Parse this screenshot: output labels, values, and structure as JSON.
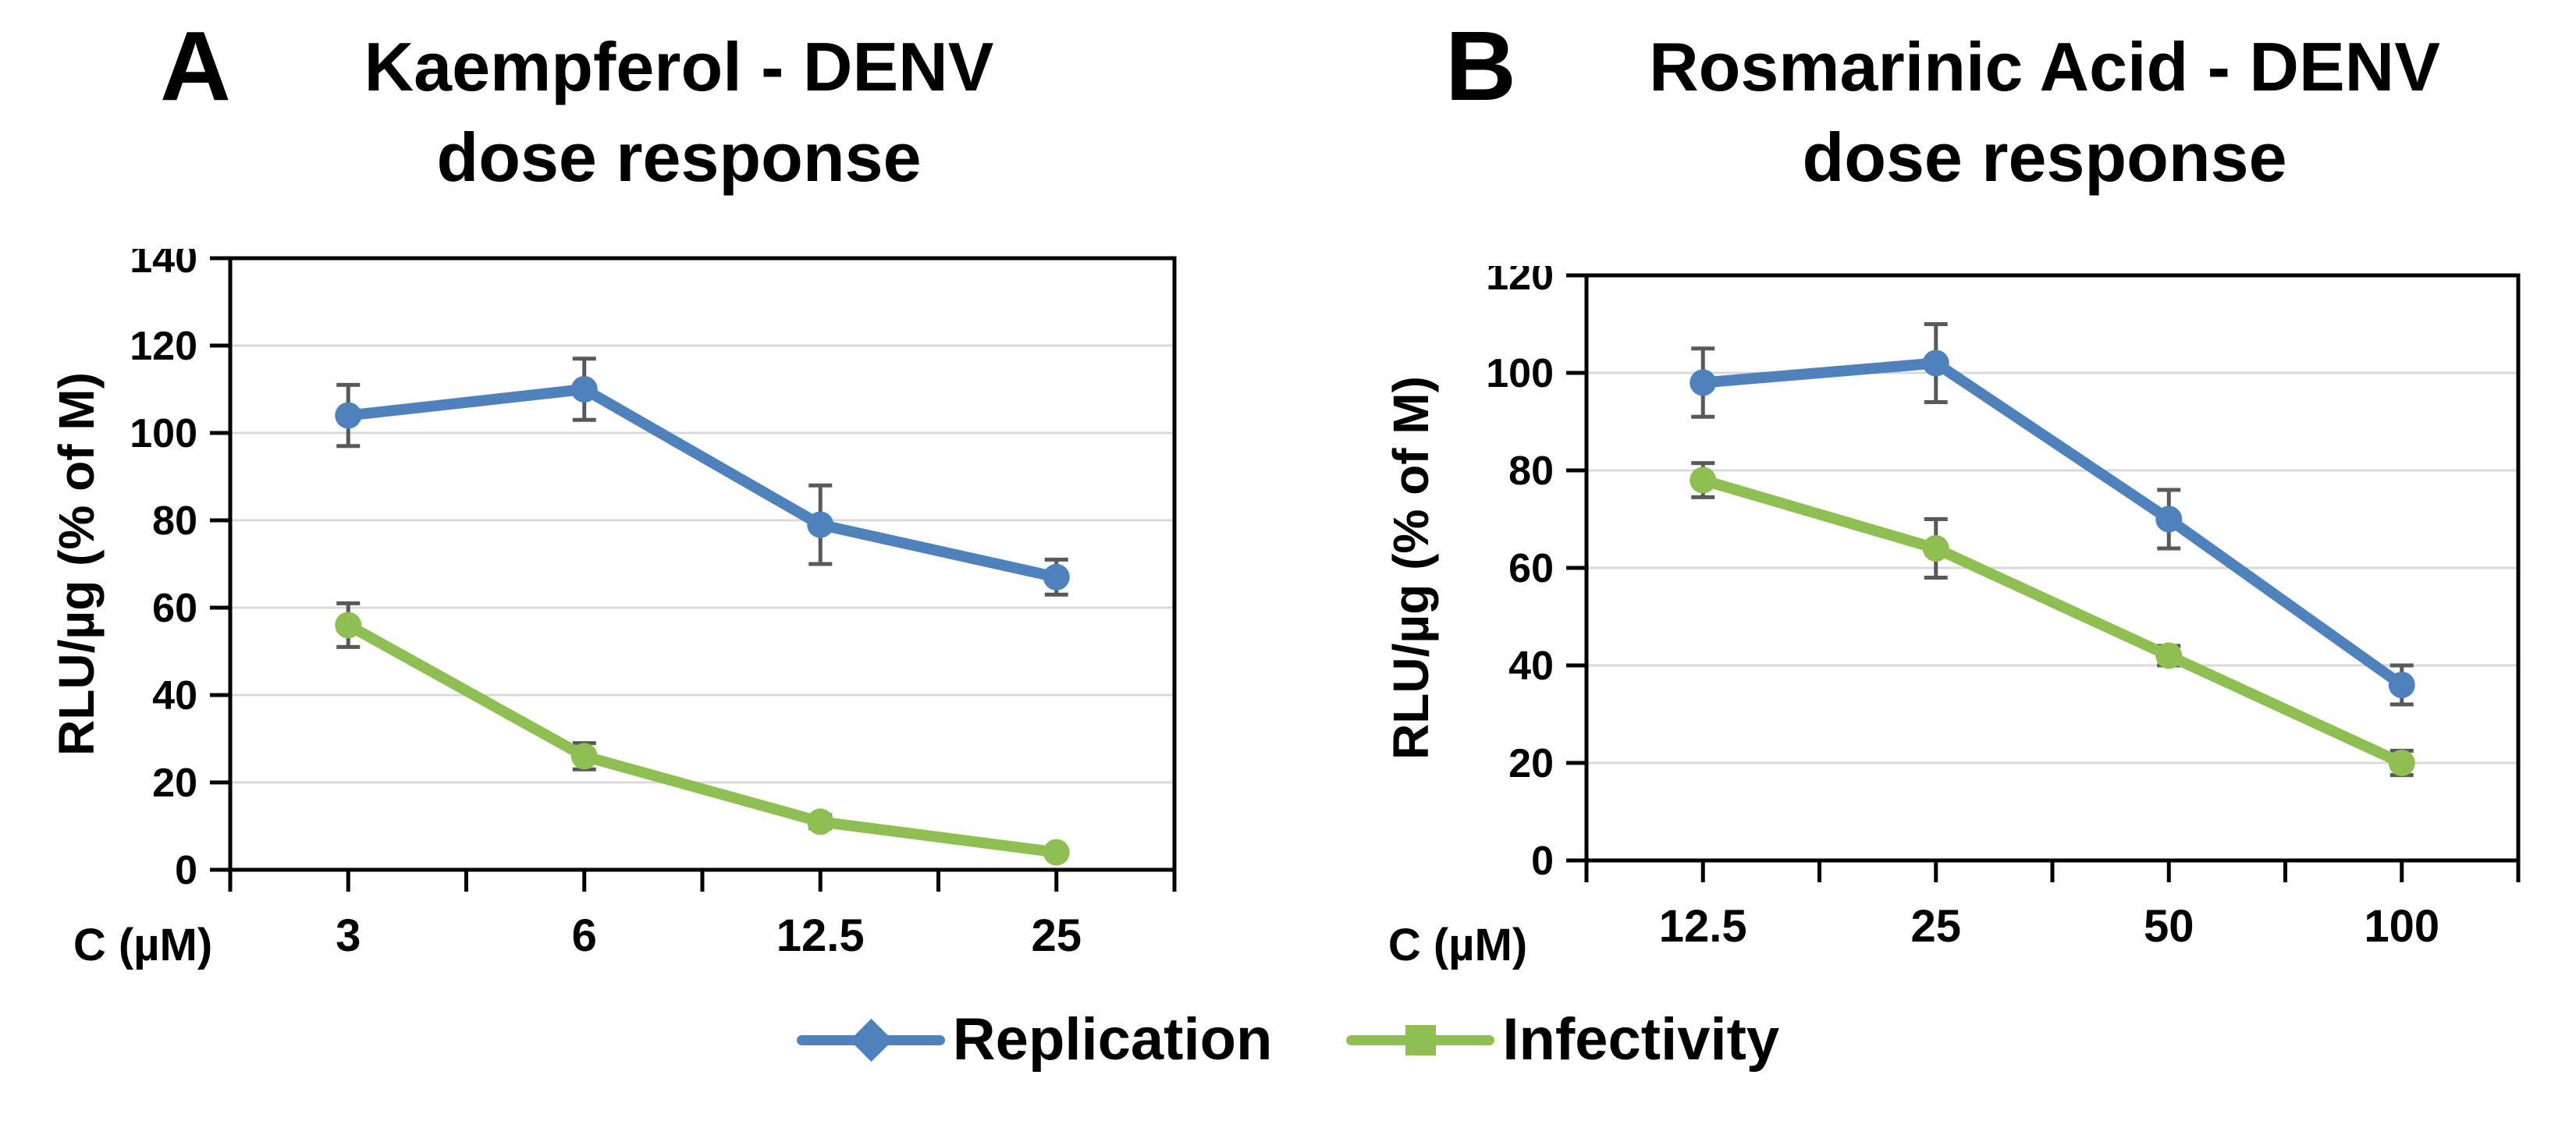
{
  "figure": {
    "panel_a_letter": "A",
    "panel_b_letter": "B",
    "colors": {
      "replication": "#4F81BD",
      "infectivity": "#8FBF52",
      "error_bar": "#595959",
      "gridline": "#D9D9D9",
      "axis": "#000000"
    },
    "legend": [
      {
        "label": "Replication",
        "marker": "diamond-icon",
        "color": "#4F81BD"
      },
      {
        "label": "Infectivity",
        "marker": "square-icon",
        "color": "#8FBF52"
      }
    ]
  },
  "chart_data": [
    {
      "id": "chart-a",
      "type": "line",
      "panel": "A",
      "title": "Kaempferol - DENV dose response",
      "title_lines": [
        "Kaempferol - DENV",
        "dose response"
      ],
      "xlabel": "C (µM)",
      "ylabel": "RLU/µg (% of M)",
      "categories": [
        "3",
        "6",
        "12.5",
        "25"
      ],
      "ylim": [
        0,
        140
      ],
      "y_ticks": [
        0,
        20,
        40,
        60,
        80,
        100,
        120,
        140
      ],
      "grid": true,
      "legend_position": "bottom",
      "series": [
        {
          "name": "Replication",
          "color": "#4F81BD",
          "marker": "circle",
          "values": [
            104,
            110,
            79,
            67
          ],
          "errors": [
            7,
            7,
            9,
            4
          ]
        },
        {
          "name": "Infectivity",
          "color": "#8FBF52",
          "marker": "circle",
          "values": [
            56,
            26,
            11,
            4
          ],
          "errors": [
            5,
            3,
            1.5,
            1
          ]
        }
      ]
    },
    {
      "id": "chart-b",
      "type": "line",
      "panel": "B",
      "title": "Rosmarinic Acid - DENV dose response",
      "title_lines": [
        "Rosmarinic Acid - DENV",
        "dose response"
      ],
      "xlabel": "C (µM)",
      "ylabel": "RLU/µg (% of M)",
      "categories": [
        "12.5",
        "25",
        "50",
        "100"
      ],
      "ylim": [
        0,
        120
      ],
      "y_ticks": [
        0,
        20,
        40,
        60,
        80,
        100,
        120
      ],
      "grid": true,
      "legend_position": "bottom",
      "series": [
        {
          "name": "Replication",
          "color": "#4F81BD",
          "marker": "circle",
          "values": [
            98,
            102,
            70,
            36
          ],
          "errors": [
            7,
            8,
            6,
            4
          ]
        },
        {
          "name": "Infectivity",
          "color": "#8FBF52",
          "marker": "circle",
          "values": [
            78,
            64,
            42,
            20
          ],
          "errors": [
            3.5,
            6,
            2,
            2.5
          ]
        }
      ]
    }
  ]
}
